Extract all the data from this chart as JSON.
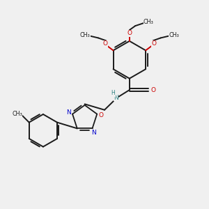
{
  "bg_color": "#f0f0f0",
  "bond_color": "#1a1a1a",
  "nitrogen_color": "#0000cc",
  "oxygen_color": "#cc0000",
  "nh_color": "#2a8080",
  "figsize": [
    3.0,
    3.0
  ],
  "dpi": 100,
  "xlim": [
    0,
    10
  ],
  "ylim": [
    0,
    10
  ]
}
